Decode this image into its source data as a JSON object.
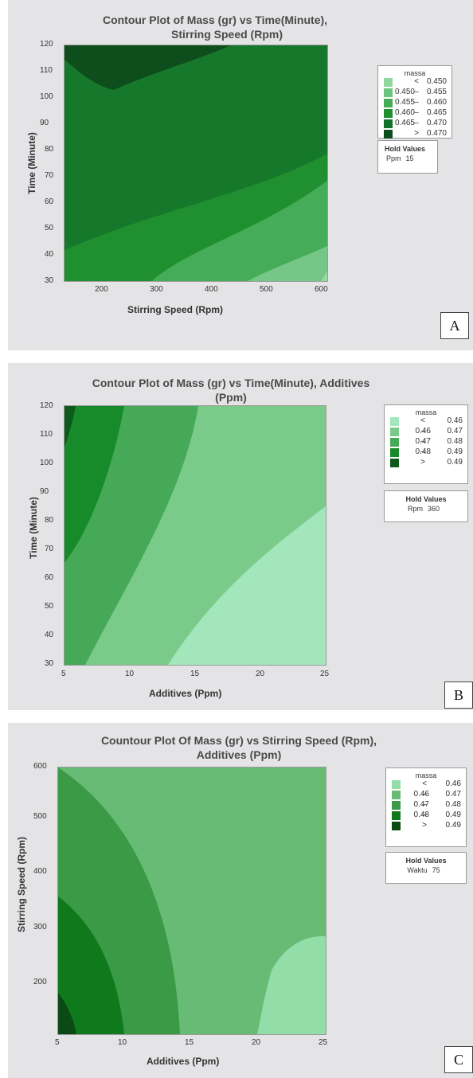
{
  "chart_data": [
    {
      "panel": "A",
      "type": "contour",
      "title_lines": [
        "Contour Plot of Mass (gr) vs Time(Minute),",
        "Stirring Speed (Rpm)"
      ],
      "xlabel": "Stirring Speed (Rpm)",
      "ylabel": "Time (Minute)",
      "xlim": [
        120,
        600
      ],
      "ylim": [
        30,
        120
      ],
      "xticks": [
        200,
        300,
        400,
        500,
        600
      ],
      "yticks": [
        30,
        40,
        50,
        60,
        70,
        80,
        90,
        100,
        110,
        120
      ],
      "legend_title": "massa",
      "legend_bands": [
        {
          "lo": "",
          "op": "<",
          "hi": "0.450",
          "color": "#90d7a0"
        },
        {
          "lo": "0.450",
          "op": "–",
          "hi": "0.455",
          "color": "#6cc57d"
        },
        {
          "lo": "0.455",
          "op": "–",
          "hi": "0.460",
          "color": "#45ad58"
        },
        {
          "lo": "0.460",
          "op": "–",
          "hi": "0.465",
          "color": "#1f8f2f"
        },
        {
          "lo": "0.465",
          "op": "–",
          "hi": "0.470",
          "color": "#12712a"
        },
        {
          "lo": "",
          "op": ">",
          "hi": "0.470",
          "color": "#0b4d1c"
        }
      ],
      "hold_title": "Hold Values",
      "hold_name": "Ppm",
      "hold_value": "15",
      "label": "A"
    },
    {
      "panel": "B",
      "type": "contour",
      "title_lines": [
        "Contour Plot of Mass (gr) vs Time(Minute), Additives",
        "(Ppm)"
      ],
      "xlabel": "Additives (Ppm)",
      "ylabel": "Time (Minute)",
      "xlim": [
        5,
        25
      ],
      "ylim": [
        30,
        120
      ],
      "xticks": [
        5,
        10,
        15,
        20,
        25
      ],
      "yticks": [
        30,
        40,
        50,
        60,
        70,
        80,
        90,
        100,
        110,
        120
      ],
      "legend_title": "massa",
      "legend_bands": [
        {
          "lo": "",
          "op": "<",
          "hi": "0.46",
          "color": "#a4e6bb"
        },
        {
          "lo": "0.46",
          "op": "–",
          "hi": "0.47",
          "color": "#7acb8a"
        },
        {
          "lo": "0.47",
          "op": "–",
          "hi": "0.48",
          "color": "#45a957"
        },
        {
          "lo": "0.48",
          "op": "–",
          "hi": "0.49",
          "color": "#178a2a"
        },
        {
          "lo": "",
          "op": ">",
          "hi": "0.49",
          "color": "#0d5a1c"
        }
      ],
      "hold_title": "Hold Values",
      "hold_name": "Rpm",
      "hold_value": "360",
      "label": "B"
    },
    {
      "panel": "C",
      "type": "contour",
      "title_lines": [
        "Countour Plot Of Mass (gr) vs Stirring Speed (Rpm),",
        "Additives (Ppm)"
      ],
      "xlabel": "Additives (Ppm)",
      "ylabel": "Stirring Speed (Rpm)",
      "xlim": [
        5,
        25
      ],
      "ylim": [
        120,
        600
      ],
      "xticks": [
        5,
        10,
        15,
        20,
        25
      ],
      "yticks": [
        200,
        300,
        400,
        500,
        600
      ],
      "legend_title": "massa",
      "legend_bands": [
        {
          "lo": "",
          "op": "<",
          "hi": "0.46",
          "color": "#93dea8"
        },
        {
          "lo": "0.46",
          "op": "–",
          "hi": "0.47",
          "color": "#68bb74"
        },
        {
          "lo": "0.47",
          "op": "–",
          "hi": "0.48",
          "color": "#3a9a45"
        },
        {
          "lo": "0.48",
          "op": "–",
          "hi": "0.49",
          "color": "#0f7a1c"
        },
        {
          "lo": "",
          "op": ">",
          "hi": "0.49",
          "color": "#0b4a14"
        }
      ],
      "hold_title": "Hold Values",
      "hold_name": "Waktu",
      "hold_value": "75",
      "label": "C"
    }
  ]
}
